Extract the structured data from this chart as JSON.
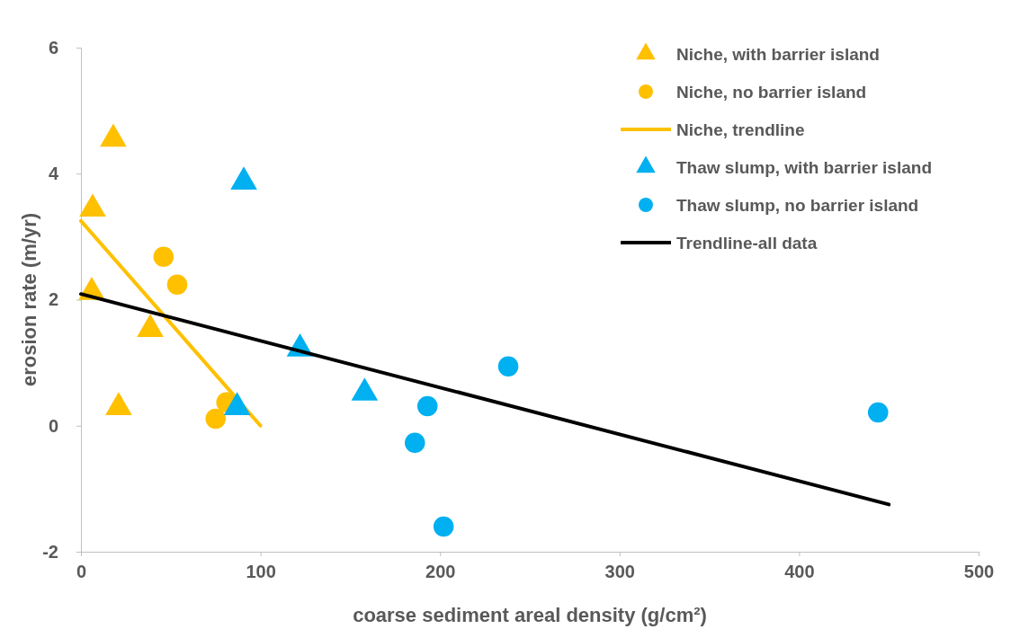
{
  "chart_data": {
    "type": "scatter",
    "xlabel": "coarse sediment areal density (g/cm²)",
    "ylabel": "erosion rate (m/yr)",
    "xlim": [
      0,
      500
    ],
    "xticks": [
      0,
      100,
      200,
      300,
      400,
      500
    ],
    "ylim": [
      -2,
      6
    ],
    "yticks": [
      -2,
      0,
      2,
      4,
      6
    ],
    "grid": false,
    "legend": "top right",
    "series": [
      {
        "name": "Niche, with barrier island",
        "color": "#ffc000",
        "marker": "triangle",
        "x": [
          18,
          6.5,
          6,
          38.6,
          21
        ],
        "values": [
          4.55,
          3.44,
          2.12,
          1.53,
          0.29
        ]
      },
      {
        "name": "Niche, no barrier island",
        "color": "#ffc000",
        "marker": "circle",
        "x": [
          46,
          53.6,
          81,
          75
        ],
        "values": [
          2.68,
          2.24,
          0.37,
          0.11
        ]
      },
      {
        "name": "Niche, trendline",
        "type": "line",
        "color": "#ffc000",
        "marker": "none",
        "x": [
          0,
          100
        ],
        "values": [
          3.25,
          0
        ]
      },
      {
        "name": "Thaw slump, with barrier island",
        "color": "#00b0f0",
        "marker": "triangle",
        "x": [
          90.7,
          87,
          122,
          158
        ],
        "values": [
          3.87,
          0.29,
          1.22,
          0.52
        ]
      },
      {
        "name": "Thaw slump, no barrier island",
        "color": "#00b0f0",
        "marker": "circle",
        "x": [
          238,
          193,
          186,
          202,
          444
        ],
        "values": [
          0.94,
          0.31,
          -0.27,
          -1.6,
          0.21
        ]
      },
      {
        "name": "Trendline-all data",
        "type": "line",
        "color": "#000000",
        "marker": "none",
        "x": [
          0,
          450
        ],
        "values": [
          2.09,
          -1.25
        ]
      }
    ]
  }
}
